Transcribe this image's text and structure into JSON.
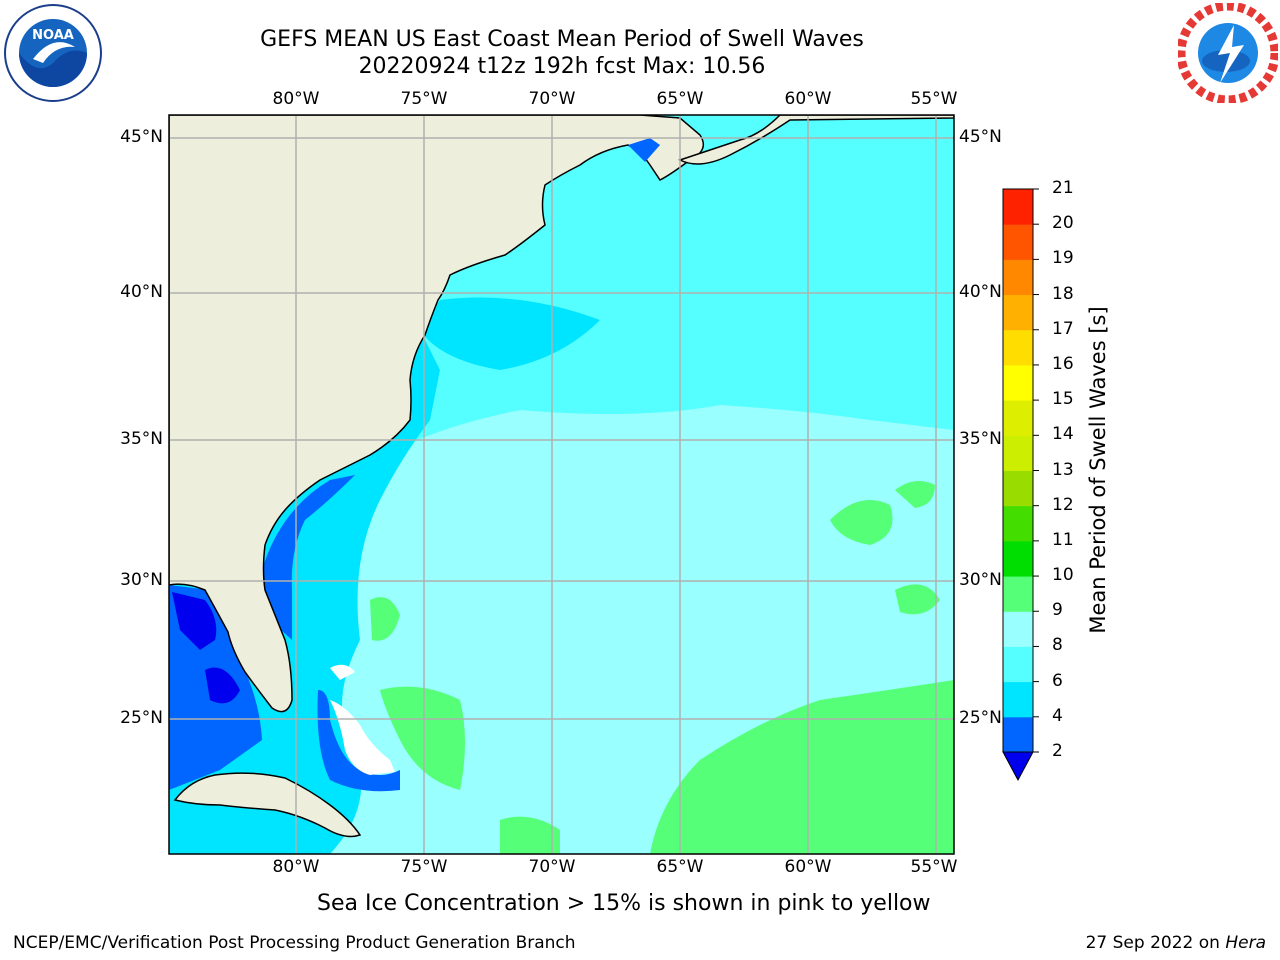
{
  "header": {
    "title_line1": "GEFS MEAN US East Coast Mean Period of Swell Waves",
    "title_line2": "20220924 t12z 192h fcst   Max: 10.56"
  },
  "map": {
    "lon_labels": [
      "80°W",
      "75°W",
      "70°W",
      "65°W",
      "60°W",
      "55°W"
    ],
    "lat_labels": [
      "45°N",
      "40°N",
      "35°N",
      "30°N",
      "25°N"
    ],
    "lon_range": [
      -85,
      -54.5
    ],
    "lat_range": [
      20.5,
      45.5
    ]
  },
  "colorbar": {
    "title": "Mean Period of Swell Waves [s]",
    "ticks": [
      "2",
      "4",
      "6",
      "8",
      "9",
      "10",
      "11",
      "12",
      "13",
      "14",
      "15",
      "16",
      "17",
      "18",
      "19",
      "20",
      "21"
    ],
    "colors": [
      "#0066ff",
      "#00e5ff",
      "#55ffff",
      "#99ffff",
      "#55ff77",
      "#00dd00",
      "#44dd00",
      "#99dd00",
      "#ccee00",
      "#ddee00",
      "#ffff00",
      "#ffdd00",
      "#ffb000",
      "#ff8800",
      "#ff5500",
      "#ff2200",
      "#ff0000"
    ],
    "underflow_color": "#0000ee"
  },
  "colors": {
    "land": "#eeeedd",
    "sea_light": "#99ffff",
    "sea_mid": "#55ffff",
    "sea_cyan": "#00e5ff",
    "sea_blue": "#0066ff",
    "sea_dark": "#0000ee",
    "swell_green": "#55ff77",
    "grid": "#b0b0b0"
  },
  "caption": "Sea Ice Concentration > 15% is shown in pink to yellow",
  "footer": {
    "left": "NCEP/EMC/Verification Post Processing Product Generation Branch",
    "date": "27 Sep 2022 on ",
    "machine": "Hera"
  }
}
